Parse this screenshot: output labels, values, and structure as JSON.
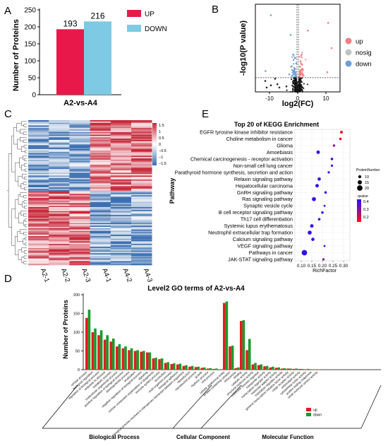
{
  "panels": {
    "a": {
      "letter": "A"
    },
    "b": {
      "letter": "B"
    },
    "c": {
      "letter": "C"
    },
    "d": {
      "letter": "D"
    },
    "e": {
      "letter": "E"
    }
  },
  "colors": {
    "up": "#e8194a",
    "down": "#7ec9e4",
    "volcano_up": "#f07f7f",
    "volcano_nosig": "#c2c2c2",
    "volcano_down": "#6f9fd8",
    "heat_high": "#c8283a",
    "heat_mid": "#ffffff",
    "heat_low": "#3b6fb0",
    "go_red": "#e21d1d",
    "go_green": "#1a9a2a",
    "kegg_low_q": "#ff1010",
    "kegg_high_q": "#2a10ff"
  },
  "chart_data": [
    {
      "panel": "A",
      "type": "bar",
      "categories": [
        "A2-vs-A4"
      ],
      "series": [
        {
          "name": "UP",
          "values": [
            193
          ]
        },
        {
          "name": "DOWN",
          "values": [
            216
          ]
        }
      ],
      "data_labels": [
        "193",
        "216"
      ],
      "title": "",
      "xlabel": "A2-vs-A4",
      "ylabel": "Number of Proteins",
      "ylim": [
        0,
        250
      ],
      "yticks": [
        "0",
        "50",
        "100",
        "150",
        "200",
        "250"
      ],
      "legend": "right"
    },
    {
      "panel": "B",
      "type": "scatter",
      "title": "",
      "xlabel": "log2(FC)",
      "ylabel": "-log10(P value)",
      "xlim": [
        -15,
        15
      ],
      "ylim": [
        0,
        8
      ],
      "xticks": [
        "-10",
        "0",
        "10"
      ],
      "thresholds": {
        "vertical": [
          -0.26,
          0.26
        ],
        "horizontal": 1.3
      },
      "series": [
        {
          "name": "up",
          "points": [
            [
              10.8,
              6.3
            ],
            [
              12.0,
              4.0
            ],
            [
              10.5,
              1.8
            ],
            [
              3.6,
              5.6
            ],
            [
              0.5,
              3.2
            ],
            [
              0.8,
              2.3
            ],
            [
              1.4,
              1.7
            ],
            [
              2.1,
              1.5
            ],
            [
              0.6,
              1.4
            ],
            [
              1.0,
              2.8
            ],
            [
              1.7,
              2.1
            ]
          ]
        },
        {
          "name": "nosig",
          "points": [
            [
              0.0,
              0.3
            ],
            [
              0.5,
              0.8
            ],
            [
              -0.5,
              0.6
            ],
            [
              0.9,
              1.0
            ],
            [
              -1.0,
              0.9
            ],
            [
              1.5,
              0.4
            ],
            [
              -1.6,
              0.5
            ],
            [
              -4.0,
              0.5
            ],
            [
              -6.5,
              0.4
            ],
            [
              -8.0,
              1.2
            ],
            [
              -11.0,
              0.4
            ],
            [
              -11.5,
              1.0
            ],
            [
              -9.5,
              0.6
            ],
            [
              -7.2,
              0.7
            ]
          ]
        },
        {
          "name": "down",
          "points": [
            [
              -0.5,
              2.6
            ],
            [
              -1.0,
              2.1
            ],
            [
              -1.4,
              1.7
            ],
            [
              -2.0,
              1.5
            ],
            [
              -0.8,
              3.1
            ],
            [
              -3.0,
              1.6
            ],
            [
              -2.3,
              2.3
            ],
            [
              -1.6,
              3.4
            ],
            [
              -2.5,
              5.2
            ],
            [
              -9.5,
              7.0
            ],
            [
              -11.4,
              1.9
            ]
          ]
        }
      ],
      "legend": [
        "up",
        "nosig",
        "down"
      ]
    },
    {
      "panel": "C",
      "type": "heatmap",
      "columns": [
        "A2-1",
        "A2-2",
        "A2-3",
        "A4-1",
        "A4-2",
        "A4-3"
      ],
      "legend_ticks": [
        "1.5",
        "1",
        "0.5",
        "0",
        "−0.5",
        "−1",
        "−1.5"
      ],
      "zlim": [
        -1.5,
        1.5
      ],
      "rows_summary": "Top block: higher in A4 (A2 low, A4 high); bottom block: higher in A2 (A2 high, A4 low)"
    },
    {
      "panel": "D",
      "type": "bar",
      "title": "Level2 GO terms of A2-vs-A4",
      "ylabel": "Number of Proteins",
      "ylim": [
        0,
        200
      ],
      "yticks": [
        "0",
        "50",
        "100",
        "150",
        "200"
      ],
      "groups": [
        "Biological Process",
        "Cellular Component",
        "Molecular Function"
      ],
      "legend": [
        "up",
        "down"
      ],
      "categories": [
        "cellular process",
        "biological regulation",
        "regulation of biological process",
        "response to stimulus",
        "metabolic process",
        "multicellular organismal process",
        "positive regulation of biological process",
        "developmental process",
        "localization",
        "negative regulation of biological process",
        "signaling",
        "cellular component organization or biogenesis",
        "immune system process",
        "locomotion",
        "multi-organism process",
        "biological adhesion",
        "biological process involved in interspecies interaction between organisms",
        "reproduction",
        "reproductive process",
        "growth",
        "rhythmic process",
        "viral process",
        "cellular anatomical entity",
        "protein-containing complex",
        "intracellular",
        "binding",
        "catalytic activity",
        "structural molecule activity",
        "molecular function regulator",
        "transporter activity",
        "transcription regulator activity",
        "molecular adaptor activity",
        "translation regulator activity",
        "general transcription initiation factor activity",
        "cargo receptor activity",
        "antioxidant activity",
        "cytoskeletal motor activity",
        "protein folding chaperone",
        "small molecule sensor activity"
      ],
      "series": [
        {
          "name": "up",
          "values": [
            138,
            100,
            92,
            80,
            75,
            62,
            57,
            52,
            50,
            48,
            46,
            30,
            28,
            18,
            15,
            14,
            10,
            8,
            7,
            5,
            3,
            2,
            178,
            62,
            4,
            130,
            52,
            14,
            12,
            9,
            6,
            5,
            3,
            3,
            2,
            2,
            1,
            1,
            1
          ]
        },
        {
          "name": "down",
          "values": [
            160,
            110,
            105,
            92,
            83,
            68,
            62,
            57,
            52,
            50,
            46,
            32,
            30,
            20,
            17,
            16,
            12,
            10,
            8,
            6,
            4,
            3,
            182,
            64,
            6,
            132,
            82,
            18,
            14,
            10,
            8,
            6,
            4,
            3,
            3,
            2,
            2,
            1,
            1
          ]
        }
      ]
    },
    {
      "panel": "E",
      "type": "scatter",
      "title": "Top 20 of KEGG Enrichment",
      "xlabel": "RichFactor",
      "ylabel": "Pathway",
      "xlim": [
        0.07,
        0.33
      ],
      "xticks": [
        "0.10",
        "0.15",
        "0.20",
        "0.25",
        "0.30"
      ],
      "size_legend": {
        "title": "ProteinNumber",
        "values": [
          "10",
          "15",
          "20"
        ]
      },
      "color_legend": {
        "title": "qvalue",
        "ticks": [
          "0.4",
          "0.3",
          "0.2"
        ]
      },
      "pathways": [
        {
          "name": "EGFR tyrosine kinase inhibitor resistance",
          "rich": 0.29,
          "count": 9,
          "q": 0.12
        },
        {
          "name": "Choline metabolism in cancer",
          "rich": 0.285,
          "count": 8,
          "q": 0.13
        },
        {
          "name": "Glioma",
          "rich": 0.255,
          "count": 7,
          "q": 0.3
        },
        {
          "name": "Amoebiasis",
          "rich": 0.18,
          "count": 12,
          "q": 0.42
        },
        {
          "name": "Chemical carcinogenesis - receptor activation",
          "rich": 0.245,
          "count": 8,
          "q": 0.42
        },
        {
          "name": "Non-small cell lung cancer",
          "rich": 0.245,
          "count": 7,
          "q": 0.4
        },
        {
          "name": "Parathyroid hormone synthesis, secretion and action",
          "rich": 0.23,
          "count": 7,
          "q": 0.4
        },
        {
          "name": "Relaxin signaling pathway",
          "rich": 0.185,
          "count": 11,
          "q": 0.43
        },
        {
          "name": "Hepatocellular carcinoma",
          "rich": 0.175,
          "count": 12,
          "q": 0.43
        },
        {
          "name": "GnRH signaling pathway",
          "rich": 0.215,
          "count": 8,
          "q": 0.42
        },
        {
          "name": "Ras signaling pathway",
          "rich": 0.16,
          "count": 14,
          "q": 0.43
        },
        {
          "name": "Synaptic vesicle cycle",
          "rich": 0.21,
          "count": 6,
          "q": 0.41
        },
        {
          "name": "B cell receptor signaling pathway",
          "rich": 0.2,
          "count": 8,
          "q": 0.42
        },
        {
          "name": "Th17 cell differentiation",
          "rich": 0.185,
          "count": 8,
          "q": 0.43
        },
        {
          "name": "Systemic lupus erythematosus",
          "rich": 0.15,
          "count": 12,
          "q": 0.43
        },
        {
          "name": "Neutrophil extracellular trap formation",
          "rich": 0.14,
          "count": 14,
          "q": 0.43
        },
        {
          "name": "Calcium signaling pathway",
          "rich": 0.155,
          "count": 11,
          "q": 0.43
        },
        {
          "name": "VEGF signaling pathway",
          "rich": 0.21,
          "count": 6,
          "q": 0.41
        },
        {
          "name": "Pathways in cancer",
          "rich": 0.115,
          "count": 20,
          "q": 0.44
        },
        {
          "name": "JAK-STAT signaling pathway",
          "rich": 0.205,
          "count": 7,
          "q": 0.3
        }
      ]
    }
  ]
}
